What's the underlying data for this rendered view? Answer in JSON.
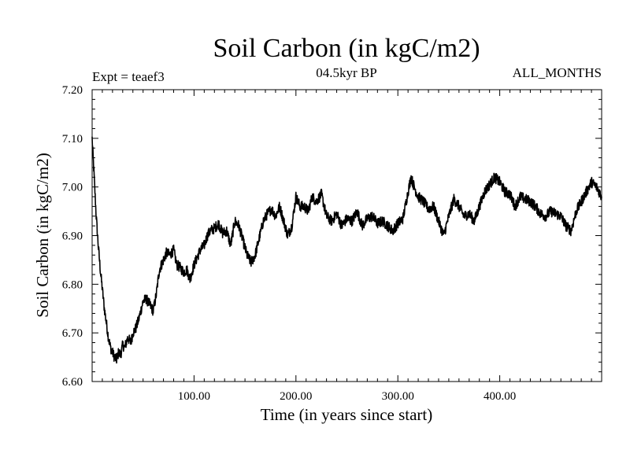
{
  "chart_data": {
    "type": "line",
    "title": "Soil Carbon (in kgC/m2)",
    "subtitle": "04.5kyr BP",
    "experiment_label": "Expt = teaef3",
    "months_label": "ALL_MONTHS",
    "xlabel": "Time (in years since start)",
    "ylabel": "Soil Carbon (in kgC/m2)",
    "xlim": [
      0,
      500
    ],
    "ylim": [
      6.6,
      7.2
    ],
    "x_ticks": [
      {
        "value": 100,
        "label": "100.00"
      },
      {
        "value": 200,
        "label": "200.00"
      },
      {
        "value": 300,
        "label": "300.00"
      },
      {
        "value": 400,
        "label": "400.00"
      }
    ],
    "y_ticks": [
      {
        "value": 6.6,
        "label": "6.60"
      },
      {
        "value": 6.7,
        "label": "6.70"
      },
      {
        "value": 6.8,
        "label": "6.80"
      },
      {
        "value": 6.9,
        "label": "6.90"
      },
      {
        "value": 7.0,
        "label": "7.00"
      },
      {
        "value": 7.1,
        "label": "7.10"
      },
      {
        "value": 7.2,
        "label": "7.20"
      }
    ],
    "series": [
      {
        "name": "Soil Carbon",
        "color": "#000000",
        "x": [
          0,
          2,
          4,
          6,
          8,
          10,
          12,
          14,
          16,
          18,
          20,
          22,
          24,
          26,
          28,
          30,
          32,
          35,
          38,
          40,
          43,
          46,
          50,
          53,
          56,
          60,
          63,
          66,
          70,
          73,
          76,
          80,
          83,
          86,
          90,
          93,
          96,
          100,
          103,
          106,
          110,
          113,
          116,
          120,
          124,
          128,
          132,
          136,
          140,
          144,
          148,
          152,
          156,
          160,
          164,
          168,
          172,
          176,
          180,
          184,
          188,
          192,
          196,
          200,
          204,
          208,
          212,
          216,
          220,
          225,
          230,
          235,
          240,
          245,
          250,
          255,
          260,
          265,
          270,
          275,
          280,
          285,
          290,
          295,
          300,
          305,
          310,
          313,
          316,
          320,
          325,
          330,
          335,
          340,
          345,
          350,
          355,
          360,
          365,
          370,
          375,
          380,
          385,
          390,
          395,
          400,
          405,
          410,
          415,
          420,
          425,
          430,
          435,
          440,
          445,
          450,
          455,
          460,
          465,
          470,
          475,
          480,
          485,
          490,
          495,
          500
        ],
        "values": [
          7.1,
          7.02,
          6.94,
          6.88,
          6.83,
          6.79,
          6.75,
          6.72,
          6.69,
          6.67,
          6.66,
          6.65,
          6.645,
          6.66,
          6.655,
          6.675,
          6.67,
          6.69,
          6.68,
          6.7,
          6.71,
          6.73,
          6.765,
          6.77,
          6.76,
          6.745,
          6.78,
          6.83,
          6.85,
          6.865,
          6.86,
          6.87,
          6.84,
          6.835,
          6.825,
          6.83,
          6.81,
          6.84,
          6.855,
          6.87,
          6.88,
          6.9,
          6.91,
          6.915,
          6.925,
          6.905,
          6.91,
          6.88,
          6.93,
          6.92,
          6.89,
          6.86,
          6.845,
          6.86,
          6.895,
          6.93,
          6.945,
          6.955,
          6.94,
          6.96,
          6.93,
          6.9,
          6.92,
          6.98,
          6.96,
          6.96,
          6.95,
          6.98,
          6.97,
          6.985,
          6.94,
          6.93,
          6.945,
          6.92,
          6.935,
          6.93,
          6.95,
          6.92,
          6.935,
          6.94,
          6.925,
          6.93,
          6.92,
          6.91,
          6.925,
          6.935,
          6.99,
          7.02,
          7.0,
          6.98,
          6.97,
          6.955,
          6.96,
          6.93,
          6.9,
          6.94,
          6.975,
          6.96,
          6.94,
          6.945,
          6.93,
          6.96,
          6.99,
          7.005,
          7.02,
          7.01,
          6.99,
          6.985,
          6.96,
          6.98,
          6.975,
          6.97,
          6.96,
          6.945,
          6.94,
          6.95,
          6.945,
          6.94,
          6.92,
          6.91,
          6.95,
          6.97,
          6.99,
          7.01,
          7.0,
          6.98
        ]
      }
    ]
  }
}
